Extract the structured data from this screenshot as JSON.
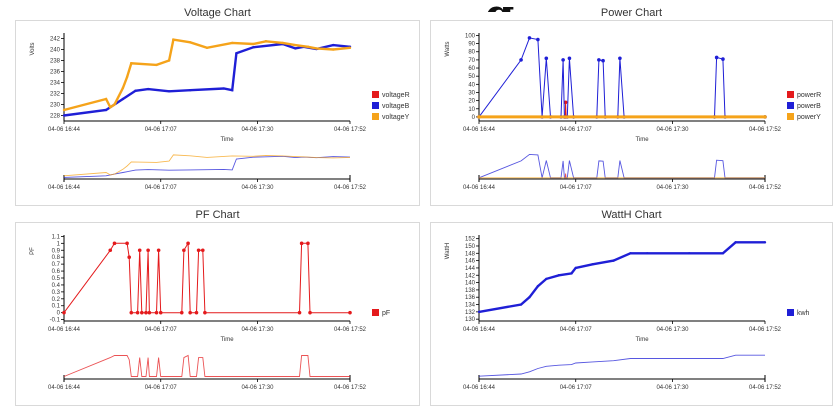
{
  "top_glyph": "g",
  "charts": [
    {
      "id": "voltage",
      "title": "Voltage Chart",
      "chart_data": {
        "type": "line",
        "title": "Voltage Chart",
        "xlabel": "Time",
        "ylabel": "Volts",
        "x_ticks": [
          "04-06 16:44",
          "04-06 17:07",
          "04-06 17:30",
          "04-06 17:52"
        ],
        "y_ticks": [
          "228",
          "230",
          "232",
          "234",
          "236",
          "238",
          "240",
          "242"
        ],
        "ylim": [
          227,
          243
        ],
        "series": [
          {
            "name": "voltageR",
            "color": "#e41a1c",
            "points": []
          },
          {
            "name": "voltageB",
            "color": "#1f1fd6",
            "points": [
              [
                0,
                228
              ],
              [
                10,
                229
              ],
              [
                12,
                230
              ],
              [
                14,
                231
              ],
              [
                17,
                232.5
              ],
              [
                20,
                232.8
              ],
              [
                25,
                232.4
              ],
              [
                30,
                232.6
              ],
              [
                38,
                232.9
              ],
              [
                40,
                232.6
              ],
              [
                41,
                239.3
              ],
              [
                45,
                240.4
              ],
              [
                52,
                241
              ],
              [
                55,
                240.2
              ],
              [
                57,
                240.5
              ],
              [
                60,
                240.1
              ],
              [
                64,
                240.8
              ],
              [
                68,
                240.5
              ]
            ]
          },
          {
            "name": "voltageY",
            "color": "#f5a31a",
            "points": [
              [
                0,
                229
              ],
              [
                10,
                231
              ],
              [
                11,
                229.5
              ],
              [
                12,
                230
              ],
              [
                14,
                233
              ],
              [
                15,
                235
              ],
              [
                16,
                237.5
              ],
              [
                22,
                237.2
              ],
              [
                25,
                238
              ],
              [
                26,
                241.8
              ],
              [
                30,
                241.3
              ],
              [
                34,
                240.3
              ],
              [
                40,
                241.2
              ],
              [
                45,
                241
              ],
              [
                48,
                241.5
              ],
              [
                52,
                241.2
              ],
              [
                55,
                240.8
              ],
              [
                58,
                240.5
              ],
              [
                60,
                240.2
              ],
              [
                64,
                240
              ],
              [
                68,
                240.3
              ]
            ]
          }
        ]
      },
      "legend": [
        "voltageR",
        "voltageB",
        "voltageY"
      ]
    },
    {
      "id": "power",
      "title": "Power Chart",
      "chart_data": {
        "type": "line",
        "title": "Power Chart",
        "xlabel": "Time",
        "ylabel": "Watts",
        "x_ticks": [
          "04-06 16:44",
          "04-06 17:07",
          "04-06 17:30",
          "04-06 17:52"
        ],
        "y_ticks": [
          "0",
          "10",
          "20",
          "30",
          "40",
          "50",
          "60",
          "70",
          "80",
          "90",
          "100"
        ],
        "ylim": [
          -5,
          103
        ],
        "series": [
          {
            "name": "powerR",
            "color": "#e41a1c",
            "points": [
              [
                20.5,
                0
              ],
              [
                20.6,
                18
              ],
              [
                20.7,
                0
              ]
            ]
          },
          {
            "name": "powerB",
            "color": "#1f1fd6",
            "points": [
              [
                0,
                0
              ],
              [
                10,
                70
              ],
              [
                12,
                97
              ],
              [
                14,
                95
              ],
              [
                15,
                0
              ],
              [
                16,
                72
              ],
              [
                17,
                0
              ],
              [
                19.5,
                0
              ],
              [
                20,
                70
              ],
              [
                20.3,
                0
              ],
              [
                21,
                0
              ],
              [
                21.5,
                72
              ],
              [
                22.5,
                0
              ],
              [
                28,
                0
              ],
              [
                28.5,
                70
              ],
              [
                29.5,
                69
              ],
              [
                30,
                0
              ],
              [
                33,
                0
              ],
              [
                33.5,
                72
              ],
              [
                34.5,
                0
              ],
              [
                56,
                0
              ],
              [
                56.5,
                73
              ],
              [
                58,
                71
              ],
              [
                58.5,
                0
              ],
              [
                68,
                0
              ]
            ]
          },
          {
            "name": "powerY",
            "color": "#f5a31a",
            "points": [
              [
                0,
                0
              ],
              [
                68,
                0
              ]
            ]
          }
        ]
      },
      "legend": [
        "powerR",
        "powerB",
        "powerY"
      ]
    },
    {
      "id": "pf",
      "title": "PF Chart",
      "chart_data": {
        "type": "line",
        "title": "PF Chart",
        "xlabel": "Time",
        "ylabel": "PF",
        "x_ticks": [
          "04-06 16:44",
          "04-06 17:07",
          "04-06 17:30",
          "04-06 17:52"
        ],
        "y_ticks": [
          "-0.1",
          "0",
          "0.1",
          "0.2",
          "0.3",
          "0.4",
          "0.5",
          "0.6",
          "0.7",
          "0.8",
          "0.9",
          "1",
          "1.1"
        ],
        "ylim": [
          -0.12,
          1.12
        ],
        "series": [
          {
            "name": "pF",
            "color": "#e41a1c",
            "points": [
              [
                0,
                0
              ],
              [
                11,
                0.9
              ],
              [
                12,
                1
              ],
              [
                15,
                1
              ],
              [
                15.5,
                0.8
              ],
              [
                16,
                0
              ],
              [
                17.5,
                0
              ],
              [
                18,
                0.9
              ],
              [
                18.5,
                0
              ],
              [
                19.5,
                0
              ],
              [
                20,
                0.9
              ],
              [
                20.3,
                0
              ],
              [
                22,
                0
              ],
              [
                22.5,
                0.9
              ],
              [
                23,
                0
              ],
              [
                28,
                0
              ],
              [
                28.5,
                0.9
              ],
              [
                29.5,
                1
              ],
              [
                30,
                0
              ],
              [
                31.5,
                0
              ],
              [
                32,
                0.9
              ],
              [
                33,
                0.9
              ],
              [
                33.5,
                0
              ],
              [
                56,
                0
              ],
              [
                56.5,
                1
              ],
              [
                58,
                1
              ],
              [
                58.5,
                0
              ],
              [
                68,
                0
              ]
            ]
          }
        ]
      },
      "legend": [
        "pF"
      ]
    },
    {
      "id": "watth",
      "title": "WattH Chart",
      "chart_data": {
        "type": "line",
        "title": "WattH Chart",
        "xlabel": "Time",
        "ylabel": "WattH",
        "x_ticks": [
          "04-06 16:44",
          "04-06 17:07",
          "04-06 17:30",
          "04-06 17:52"
        ],
        "y_ticks": [
          "130",
          "132",
          "134",
          "136",
          "138",
          "140",
          "142",
          "144",
          "146",
          "148",
          "150",
          "152"
        ],
        "ylim": [
          129.5,
          153
        ],
        "series": [
          {
            "name": "kwh",
            "color": "#1f1fd6",
            "points": [
              [
                0,
                132
              ],
              [
                10,
                134
              ],
              [
                12,
                136
              ],
              [
                14,
                139
              ],
              [
                16,
                141
              ],
              [
                19,
                142
              ],
              [
                22,
                142.5
              ],
              [
                23,
                144
              ],
              [
                27,
                145
              ],
              [
                32,
                146
              ],
              [
                36,
                148
              ],
              [
                40,
                148
              ],
              [
                50,
                148
              ],
              [
                58,
                148
              ],
              [
                61,
                151
              ],
              [
                68,
                151
              ]
            ]
          }
        ]
      },
      "legend": [
        "kwh"
      ]
    }
  ]
}
